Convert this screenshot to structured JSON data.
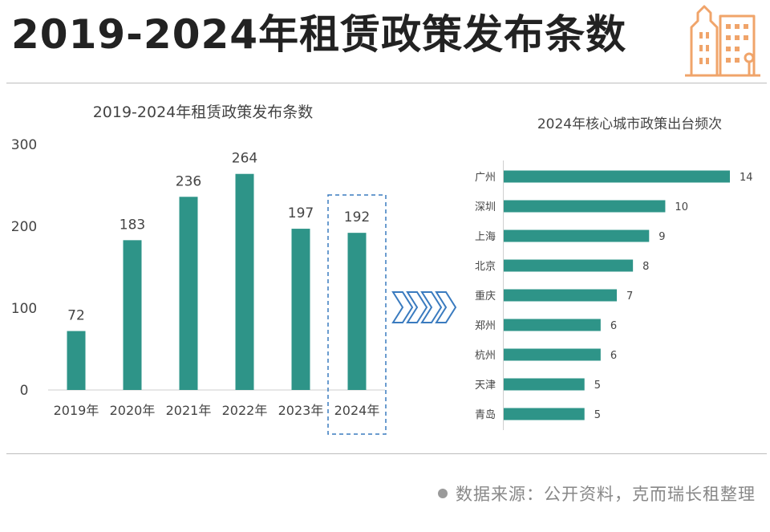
{
  "page": {
    "title": "2019-2024年租赁政策发布条数",
    "accent_color": "#2e9488",
    "logo_color": "#f0a46a"
  },
  "chart_data": [
    {
      "type": "bar",
      "title": "2019-2024年租赁政策发布条数",
      "categories": [
        "2019年",
        "2020年",
        "2021年",
        "2022年",
        "2023年",
        "2024年"
      ],
      "values": [
        72,
        183,
        236,
        264,
        197,
        192
      ],
      "ylim": [
        0,
        300
      ],
      "yticks": [
        0,
        100,
        200,
        300
      ],
      "xlabel": "",
      "ylabel": "",
      "highlight_category": "2024年",
      "grid": false,
      "bar_color": "#2e9488"
    },
    {
      "type": "bar",
      "orientation": "horizontal",
      "title": "2024年核心城市政策出台频次",
      "categories": [
        "广州",
        "深圳",
        "上海",
        "北京",
        "重庆",
        "郑州",
        "杭州",
        "天津",
        "青岛"
      ],
      "values": [
        14,
        10,
        9,
        8,
        7,
        6,
        6,
        5,
        5
      ],
      "xlim": [
        0,
        14
      ],
      "grid": false,
      "bar_color": "#2e9488"
    }
  ],
  "footer": {
    "source": "数据来源：公开资料，克而瑞长租整理"
  }
}
